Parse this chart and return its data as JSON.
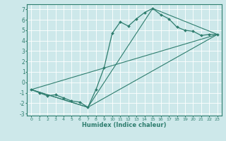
{
  "xlabel": "Humidex (Indice chaleur)",
  "background_color": "#cde8ea",
  "grid_color": "#ffffff",
  "line_color": "#2e7d6e",
  "xlim": [
    -0.5,
    23.5
  ],
  "ylim": [
    -3.2,
    7.5
  ],
  "xticks": [
    0,
    1,
    2,
    3,
    4,
    5,
    6,
    7,
    8,
    9,
    10,
    11,
    12,
    13,
    14,
    15,
    16,
    17,
    18,
    19,
    20,
    21,
    22,
    23
  ],
  "yticks": [
    -3,
    -2,
    -1,
    0,
    1,
    2,
    3,
    4,
    5,
    6,
    7
  ],
  "main_series": {
    "x": [
      0,
      1,
      2,
      3,
      4,
      5,
      6,
      7,
      8,
      9,
      10,
      11,
      12,
      13,
      14,
      15,
      16,
      17,
      18,
      19,
      20,
      21,
      22,
      23
    ],
    "y": [
      -0.7,
      -1.0,
      -1.3,
      -1.2,
      -1.5,
      -1.8,
      -1.9,
      -2.4,
      -0.7,
      1.4,
      4.7,
      5.8,
      5.4,
      6.1,
      6.7,
      7.1,
      6.5,
      6.1,
      5.3,
      5.0,
      4.9,
      4.5,
      4.6,
      4.6
    ]
  },
  "straight_lines": [
    {
      "x": [
        0,
        23
      ],
      "y": [
        -0.7,
        4.6
      ]
    },
    {
      "x": [
        0,
        7,
        15,
        23
      ],
      "y": [
        -0.7,
        -2.4,
        7.1,
        4.6
      ]
    },
    {
      "x": [
        0,
        7,
        23
      ],
      "y": [
        -0.7,
        -2.4,
        4.6
      ]
    }
  ]
}
